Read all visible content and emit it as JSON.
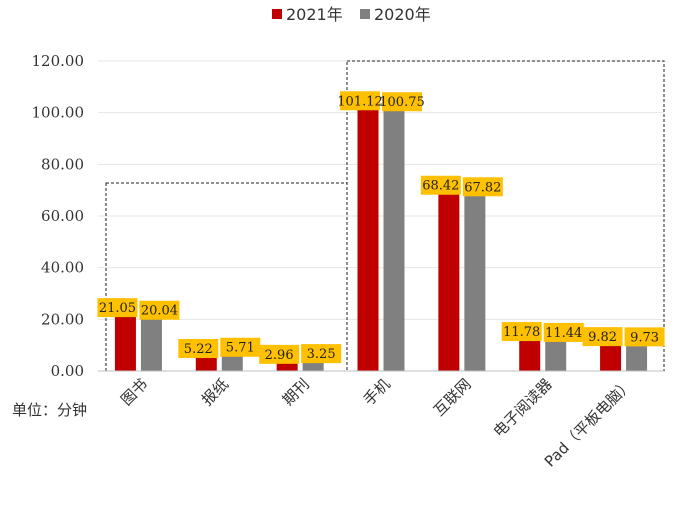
{
  "chart_data": {
    "type": "bar",
    "categories": [
      "图书",
      "报纸",
      "期刊",
      "手机",
      "互联网",
      "电子阅读器",
      "Pad（平板电脑）"
    ],
    "series": [
      {
        "name": "2021年",
        "color": "#C00000",
        "values": [
          21.05,
          5.22,
          2.96,
          101.12,
          68.42,
          11.78,
          9.82
        ]
      },
      {
        "name": "2020年",
        "color": "#808080",
        "values": [
          20.04,
          5.71,
          3.25,
          100.75,
          67.82,
          11.44,
          9.73
        ]
      }
    ],
    "ylim": [
      0,
      120
    ],
    "yticks": [
      "0.00",
      "20.00",
      "40.00",
      "60.00",
      "80.00",
      "100.00",
      "120.00"
    ],
    "unit_label": "单位：分钟",
    "legend_position": "top",
    "grid": true,
    "data_label_color": "#FFC000"
  }
}
